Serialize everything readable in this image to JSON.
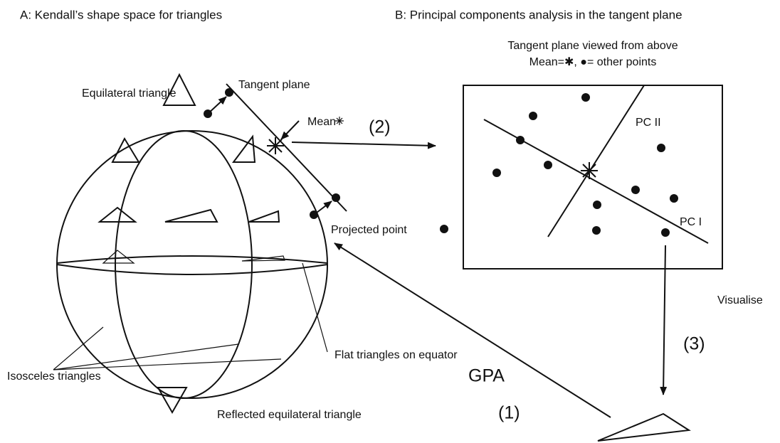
{
  "panel_a": {
    "title": "A: Kendall’s shape space for triangles",
    "labels": {
      "equilateral": "Equilateral triangle",
      "tangent_plane": "Tangent plane",
      "mean": "Mean",
      "step2": "(2)",
      "projected": "Projected point",
      "flat": "Flat triangles on equator",
      "isosceles": "Isosceles triangles",
      "reflected": "Reflected equilateral triangle",
      "gpa": "GPA",
      "step1": "(1)"
    }
  },
  "panel_b": {
    "title": "B: Principal components analysis in the tangent plane",
    "subtitle": "Tangent plane viewed from above",
    "legend": "Mean=✱, ●= other points",
    "pc2": "PC II",
    "pc1": "PC I",
    "visualise": "Visualise",
    "step3": "(3)"
  }
}
